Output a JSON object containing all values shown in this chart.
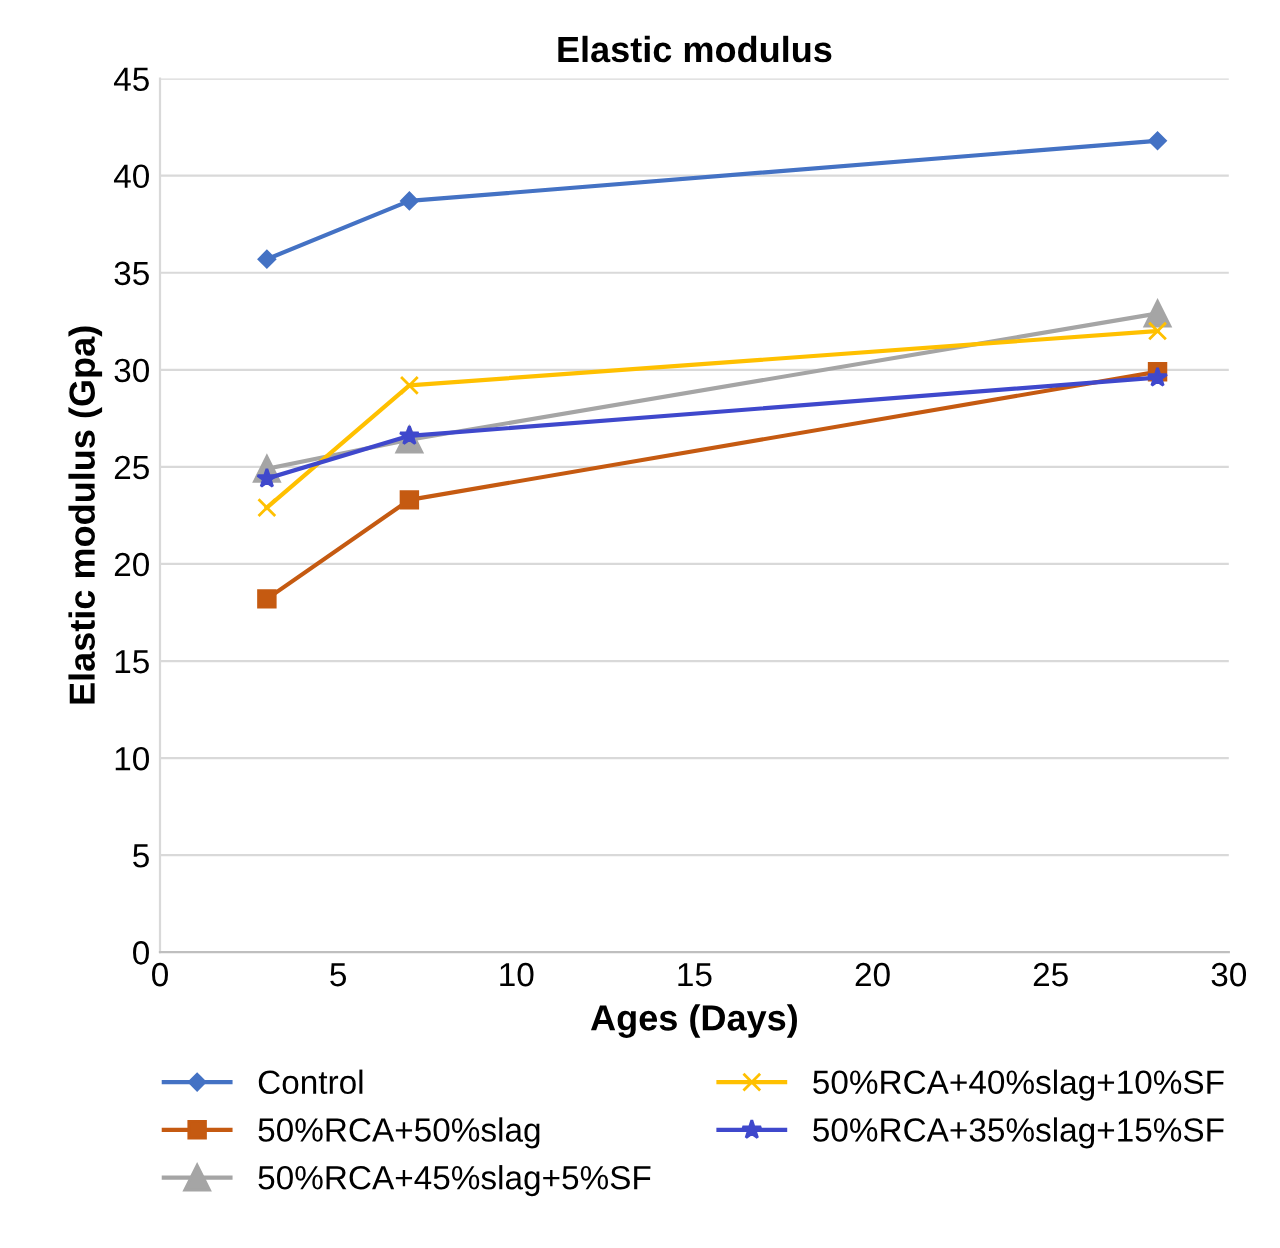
{
  "chart_data": {
    "type": "line",
    "title": "Elastic modulus",
    "xlabel": "Ages (Days)",
    "ylabel": "Elastic modulus (Gpa)",
    "x": [
      3,
      7,
      28
    ],
    "series": [
      {
        "name": "Control",
        "color": "#4472c4",
        "marker": "diamond",
        "values": [
          35.7,
          38.7,
          41.8
        ]
      },
      {
        "name": "50%RCA+50%slag",
        "color": "#c55a11",
        "marker": "square",
        "values": [
          18.2,
          23.3,
          29.9
        ]
      },
      {
        "name": "50%RCA+45%slag+5%SF",
        "color": "#a5a5a5",
        "marker": "triangle",
        "values": [
          24.9,
          26.4,
          32.9
        ]
      },
      {
        "name": "50%RCA+40%slag+10%SF",
        "color": "#ffc000",
        "marker": "cross",
        "values": [
          22.9,
          29.2,
          32.0
        ]
      },
      {
        "name": "50%RCA+35%slag+15%SF",
        "color": "#3f48cc",
        "marker": "star",
        "values": [
          24.4,
          26.6,
          29.6
        ]
      }
    ],
    "xlim": [
      0,
      30
    ],
    "xticks": [
      0,
      5,
      10,
      15,
      20,
      25,
      30
    ],
    "ylim": [
      0,
      45
    ],
    "yticks": [
      0,
      5,
      10,
      15,
      20,
      25,
      30,
      35,
      40,
      45
    ],
    "grid": "y",
    "legend": "bottom",
    "line_style": "solid"
  }
}
